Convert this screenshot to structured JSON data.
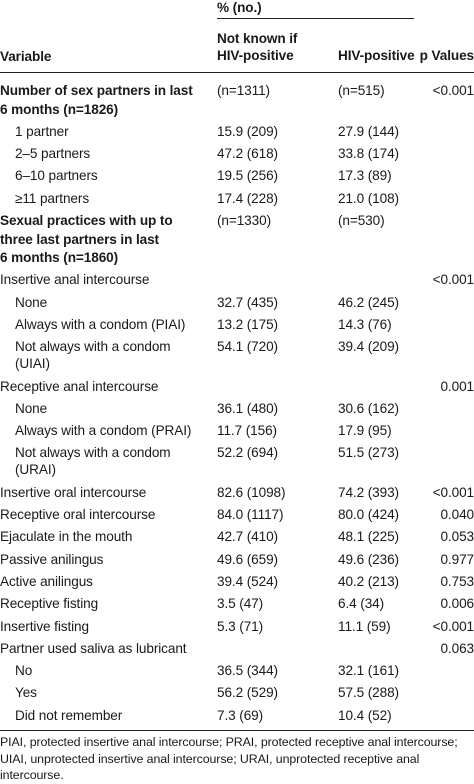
{
  "header": {
    "group_label": "% (no.)",
    "variable_label": "Variable",
    "col1_label": [
      "Not known if",
      "HIV-positive"
    ],
    "col2_label": "HIV-positive",
    "col3_label": "p Values"
  },
  "rows": [
    {
      "label": [
        "Number of sex partners in last",
        "6 months (n=1826)"
      ],
      "bold": true,
      "indent": false,
      "c1": "(n=1311)",
      "c2": "(n=515)",
      "c3": "<0.001"
    },
    {
      "label": [
        "1 partner"
      ],
      "bold": false,
      "indent": true,
      "c1": "15.9 (209)",
      "c2": "27.9 (144)",
      "c3": ""
    },
    {
      "label": [
        "2–5 partners"
      ],
      "bold": false,
      "indent": true,
      "c1": "47.2 (618)",
      "c2": "33.8 (174)",
      "c3": ""
    },
    {
      "label": [
        "6–10 partners"
      ],
      "bold": false,
      "indent": true,
      "c1": "19.5 (256)",
      "c2": "17.3 (89)",
      "c3": ""
    },
    {
      "label": [
        "≥11 partners"
      ],
      "bold": false,
      "indent": true,
      "c1": "17.4 (228)",
      "c2": "21.0 (108)",
      "c3": ""
    },
    {
      "label": [
        "Sexual practices with up to",
        "three last partners in last",
        "6 months (n=1860)"
      ],
      "bold": true,
      "indent": false,
      "c1": "(n=1330)",
      "c2": "(n=530)",
      "c3": ""
    },
    {
      "label": [
        "Insertive anal intercourse"
      ],
      "bold": false,
      "indent": false,
      "c1": "",
      "c2": "",
      "c3": "<0.001"
    },
    {
      "label": [
        "None"
      ],
      "bold": false,
      "indent": true,
      "c1": "32.7 (435)",
      "c2": "46.2 (245)",
      "c3": ""
    },
    {
      "label": [
        "Always with a condom (PIAI)"
      ],
      "bold": false,
      "indent": true,
      "c1": "13.2 (175)",
      "c2": "14.3 (76)",
      "c3": ""
    },
    {
      "label": [
        "Not always with a condom",
        "(UIAI)"
      ],
      "bold": false,
      "indent": true,
      "c1": "54.1 (720)",
      "c2": "39.4 (209)",
      "c3": ""
    },
    {
      "label": [
        "Receptive anal intercourse"
      ],
      "bold": false,
      "indent": false,
      "c1": "",
      "c2": "",
      "c3": "0.001"
    },
    {
      "label": [
        "None"
      ],
      "bold": false,
      "indent": true,
      "c1": "36.1 (480)",
      "c2": "30.6 (162)",
      "c3": ""
    },
    {
      "label": [
        "Always with a condom (PRAI)"
      ],
      "bold": false,
      "indent": true,
      "c1": "11.7 (156)",
      "c2": "17.9 (95)",
      "c3": ""
    },
    {
      "label": [
        "Not always with a condom",
        "(URAI)"
      ],
      "bold": false,
      "indent": true,
      "c1": "52.2 (694)",
      "c2": "51.5 (273)",
      "c3": ""
    },
    {
      "label": [
        "Insertive oral intercourse"
      ],
      "bold": false,
      "indent": false,
      "c1": "82.6 (1098)",
      "c2": "74.2 (393)",
      "c3": "<0.001"
    },
    {
      "label": [
        "Receptive oral intercourse"
      ],
      "bold": false,
      "indent": false,
      "c1": "84.0 (1117)",
      "c2": "80.0 (424)",
      "c3": "0.040"
    },
    {
      "label": [
        "Ejaculate in the mouth"
      ],
      "bold": false,
      "indent": false,
      "c1": "42.7 (410)",
      "c2": "48.1 (225)",
      "c3": "0.053"
    },
    {
      "label": [
        "Passive anilingus"
      ],
      "bold": false,
      "indent": false,
      "c1": "49.6 (659)",
      "c2": "49.6 (236)",
      "c3": "0.977"
    },
    {
      "label": [
        "Active anilingus"
      ],
      "bold": false,
      "indent": false,
      "c1": "39.4 (524)",
      "c2": "40.2 (213)",
      "c3": "0.753"
    },
    {
      "label": [
        "Receptive fisting"
      ],
      "bold": false,
      "indent": false,
      "c1": "3.5 (47)",
      "c2": "6.4 (34)",
      "c3": "0.006"
    },
    {
      "label": [
        "Insertive fisting"
      ],
      "bold": false,
      "indent": false,
      "c1": "5.3 (71)",
      "c2": "11.1 (59)",
      "c3": "<0.001"
    },
    {
      "label": [
        "Partner used saliva as lubricant"
      ],
      "bold": false,
      "indent": false,
      "c1": "",
      "c2": "",
      "c3": "0.063"
    },
    {
      "label": [
        "No"
      ],
      "bold": false,
      "indent": true,
      "c1": "36.5 (344)",
      "c2": "32.1 (161)",
      "c3": ""
    },
    {
      "label": [
        "Yes"
      ],
      "bold": false,
      "indent": true,
      "c1": "56.2 (529)",
      "c2": "57.5 (288)",
      "c3": ""
    },
    {
      "label": [
        "Did not remember"
      ],
      "bold": false,
      "indent": true,
      "c1": "7.3 (69)",
      "c2": "10.4 (52)",
      "c3": ""
    }
  ],
  "footnote": "PIAI, protected insertive anal intercourse; PRAI, protected receptive anal intercourse; UIAI, unprotected insertive anal intercourse; URAI, unprotected receptive anal intercourse."
}
